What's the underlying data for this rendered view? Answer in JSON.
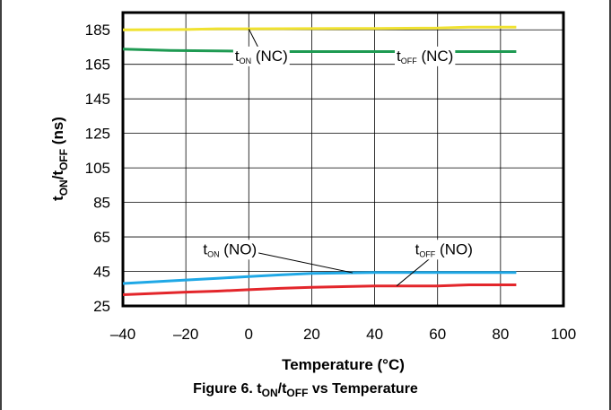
{
  "chart_data": {
    "type": "line",
    "title": "",
    "xlabel": "Temperature (°C)",
    "ylabel": {
      "main": "t",
      "sub1": "ON",
      "mid": "/t",
      "sub2": "OFF",
      "tail": " (ns)"
    },
    "xlim": [
      -40,
      100
    ],
    "ylim": [
      25,
      195
    ],
    "x_ticks": [
      "–40",
      "–20",
      "0",
      "20",
      "40",
      "60",
      "80",
      "100"
    ],
    "y_ticks": [
      "25",
      "45",
      "65",
      "85",
      "105",
      "125",
      "145",
      "165",
      "185"
    ],
    "series": [
      {
        "color": "#f0e230",
        "x": [
          -40,
          -20,
          -10,
          0,
          20,
          40,
          60,
          70,
          85
        ],
        "y": [
          185.0,
          185.2,
          185.6,
          185.6,
          185.7,
          185.8,
          186.0,
          186.6,
          186.6
        ]
      },
      {
        "color": "#1e9a52",
        "x": [
          -40,
          -25,
          -10,
          0,
          10,
          40,
          60,
          85
        ],
        "y": [
          173.8,
          173.0,
          172.8,
          172.6,
          172.4,
          172.4,
          172.4,
          172.4
        ]
      },
      {
        "color": "#1fa8e6",
        "x": [
          -40,
          -20,
          -10,
          0,
          10,
          20,
          40,
          60,
          85
        ],
        "y": [
          38.0,
          40.0,
          41.0,
          42.0,
          43.0,
          43.8,
          44.4,
          44.4,
          44.4
        ]
      },
      {
        "color": "#e3262b",
        "x": [
          -40,
          -20,
          -10,
          0,
          10,
          20,
          40,
          60,
          70,
          85
        ],
        "y": [
          31.5,
          33.0,
          33.6,
          34.4,
          35.2,
          35.8,
          36.6,
          36.6,
          37.2,
          37.2
        ]
      }
    ],
    "annotations": [
      {
        "t": "t",
        "s": "ON",
        "tail": " (NC)",
        "x": 4,
        "y": 167,
        "tx": 0,
        "ty": 185.5
      },
      {
        "t": "t",
        "s": "OFF",
        "tail": " (NC)",
        "x": 56,
        "y": 167,
        "tx": 60,
        "ty": 172.4
      },
      {
        "t": "t",
        "s": "ON",
        "tail": " (NO)",
        "x": -6,
        "y": 55,
        "tx": 33,
        "ty": 44.2
      },
      {
        "t": "t",
        "s": "OFF",
        "tail": " (NO)",
        "x": 62,
        "y": 55,
        "tx": 47,
        "ty": 36.6
      }
    ]
  },
  "caption": {
    "pre": "Figure 6. t",
    "sub1": "ON",
    "mid": "/t",
    "sub2": "OFF",
    "post": " vs Temperature"
  }
}
